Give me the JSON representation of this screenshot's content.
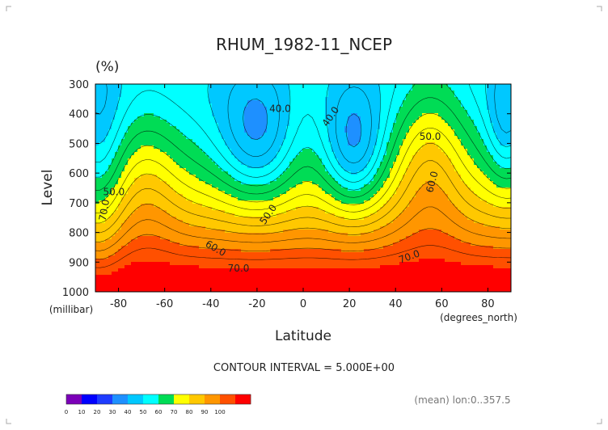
{
  "chart_data": {
    "type": "heatmap",
    "title": "RHUM_1982-11_NCEP",
    "units_label": "(%)",
    "xlabel": "Latitude",
    "x_units": "(degrees_north)",
    "ylabel": "Level",
    "y_units": "(millibar)",
    "xlim": [
      -90,
      90
    ],
    "ylim": [
      1000,
      300
    ],
    "x_ticks": [
      "-80",
      "-60",
      "-40",
      "-20",
      "0",
      "20",
      "40",
      "60",
      "80"
    ],
    "y_ticks": [
      "300",
      "400",
      "500",
      "600",
      "700",
      "800",
      "900",
      "1000"
    ],
    "contour_interval": "CONTOUR INTERVAL = 5.000E+00",
    "annotation": "(mean) lon:0..357.5",
    "colorbar": {
      "labels": [
        "0",
        "10",
        "20",
        "30",
        "40",
        "50",
        "60",
        "70",
        "80",
        "90",
        "100"
      ],
      "colors": [
        "#7b00b8",
        "#0000ff",
        "#1e3cff",
        "#1e90ff",
        "#00c8ff",
        "#00ffff",
        "#00dc55",
        "#ffff00",
        "#ffc800",
        "#ff9600",
        "#ff5000",
        "#ff0000"
      ]
    },
    "contour_labels": [
      {
        "text": "40.0",
        "x": -10,
        "y": 385,
        "rot": 0
      },
      {
        "text": "40.0",
        "x": 12,
        "y": 410,
        "rot": -55
      },
      {
        "text": "50.0",
        "x": 55,
        "y": 478,
        "rot": 0
      },
      {
        "text": "50.0",
        "x": -82,
        "y": 665,
        "rot": 0
      },
      {
        "text": "50.0",
        "x": -15,
        "y": 740,
        "rot": -55
      },
      {
        "text": "60.0",
        "x": 56,
        "y": 630,
        "rot": -75
      },
      {
        "text": "60.0",
        "x": -38,
        "y": 855,
        "rot": 30
      },
      {
        "text": "70.0",
        "x": -86,
        "y": 725,
        "rot": -80
      },
      {
        "text": "70.0",
        "x": -28,
        "y": 923,
        "rot": 0
      },
      {
        "text": "70.0",
        "x": 46,
        "y": 883,
        "rot": -20
      }
    ],
    "grid": false
  }
}
